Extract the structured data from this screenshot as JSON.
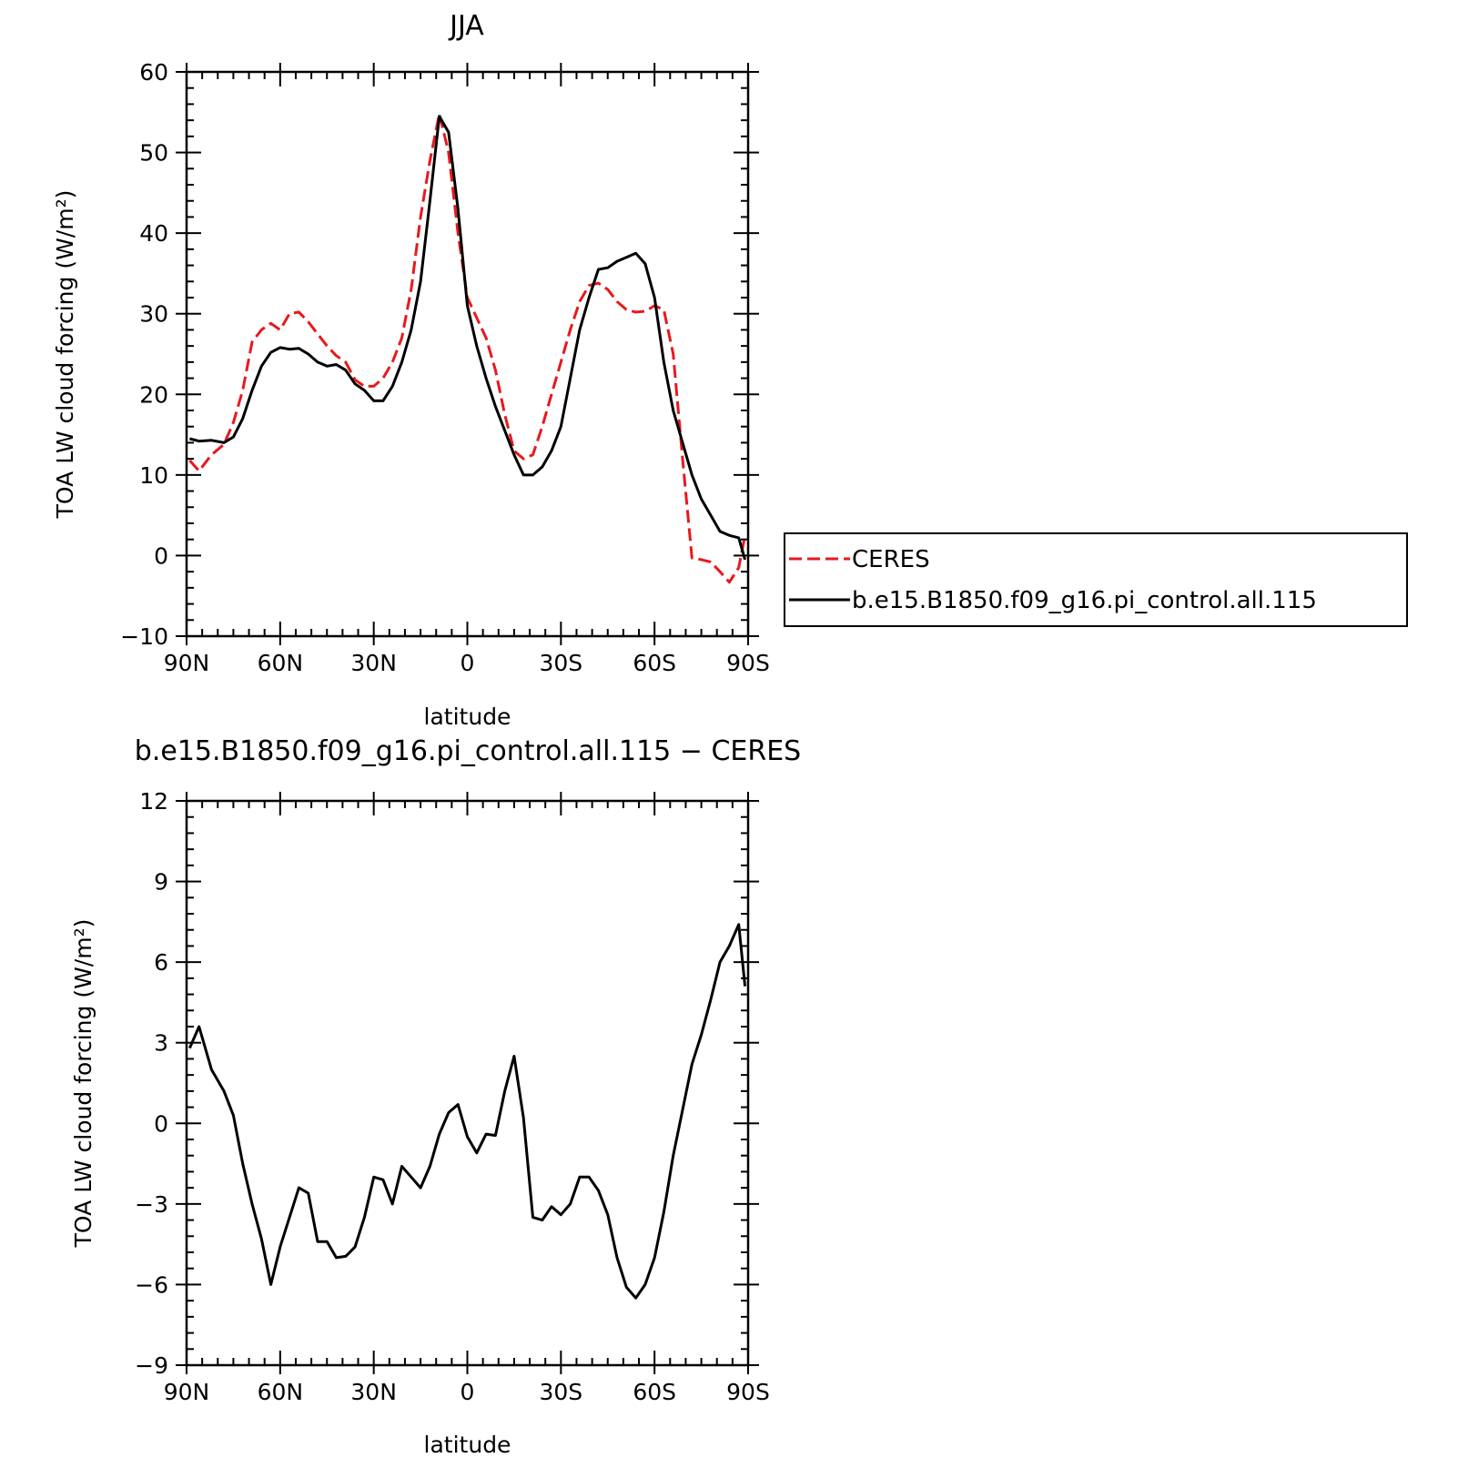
{
  "chart_data": [
    {
      "type": "line",
      "title": "JJA",
      "xlabel": "latitude",
      "ylabel": "TOA LW cloud forcing (W/m²)",
      "xlim": [
        90,
        -90
      ],
      "ylim": [
        -10,
        60
      ],
      "x_ticks": [
        90,
        60,
        30,
        0,
        -30,
        -60,
        -90
      ],
      "x_tick_labels": [
        "90N",
        "60N",
        "30N",
        "0",
        "30S",
        "60S",
        "90S"
      ],
      "y_ticks": [
        -10,
        0,
        10,
        20,
        30,
        40,
        50,
        60
      ],
      "y_tick_labels": [
        "−10",
        "0",
        "10",
        "20",
        "30",
        "40",
        "50",
        "60"
      ],
      "legend": "right",
      "series": [
        {
          "name": "CERES",
          "color": "#e8191c",
          "dash": "dashed",
          "x": [
            89,
            86,
            82,
            78,
            75,
            72,
            69,
            66,
            63,
            60,
            57,
            54,
            51,
            48,
            45,
            42,
            39,
            36,
            33,
            30,
            27,
            24,
            21,
            18,
            15,
            12,
            9,
            6,
            3,
            0,
            -3,
            -6,
            -9,
            -12,
            -15,
            -18,
            -21,
            -24,
            -27,
            -30,
            -33,
            -36,
            -39,
            -42,
            -45,
            -48,
            -51,
            -54,
            -57,
            -60,
            -63,
            -66,
            -69,
            -72,
            -75,
            -78,
            -81,
            -84,
            -87,
            -89
          ],
          "y": [
            11.8,
            10.5,
            12.5,
            13.8,
            16.5,
            20.5,
            26.5,
            28.0,
            28.8,
            28.0,
            30.0,
            30.2,
            29.0,
            27.5,
            26.0,
            24.8,
            24.0,
            21.8,
            21.0,
            21.0,
            22.0,
            24.0,
            27.0,
            33.0,
            42.0,
            49.0,
            54.8,
            50.0,
            40.0,
            32.0,
            29.5,
            27.0,
            23.0,
            17.5,
            13.0,
            12.0,
            12.5,
            16.0,
            20.0,
            24.0,
            28.0,
            31.5,
            33.5,
            33.8,
            33.0,
            31.5,
            30.5,
            30.2,
            30.3,
            31.0,
            30.5,
            25.0,
            12.0,
            -0.3,
            -0.5,
            -0.8,
            -2.0,
            -3.3,
            -1.5,
            2.5
          ]
        },
        {
          "name": "b.e15.B1850.f09_g16.pi_control.all.115",
          "color": "#000000",
          "dash": "solid",
          "x": [
            89,
            86,
            82,
            78,
            75,
            72,
            69,
            66,
            63,
            60,
            57,
            54,
            51,
            48,
            45,
            42,
            39,
            36,
            33,
            30,
            27,
            24,
            21,
            18,
            15,
            12,
            9,
            6,
            3,
            0,
            -3,
            -6,
            -9,
            -12,
            -15,
            -18,
            -21,
            -24,
            -27,
            -30,
            -33,
            -36,
            -39,
            -42,
            -45,
            -48,
            -51,
            -54,
            -57,
            -60,
            -63,
            -66,
            -69,
            -72,
            -75,
            -78,
            -81,
            -84,
            -87,
            -89
          ],
          "y": [
            14.5,
            14.2,
            14.3,
            14.0,
            14.7,
            17.0,
            20.5,
            23.5,
            25.2,
            25.8,
            25.6,
            25.7,
            25.0,
            24.0,
            23.5,
            23.7,
            23.0,
            21.3,
            20.5,
            19.2,
            19.2,
            21.0,
            24.0,
            28.0,
            34.0,
            44.0,
            54.5,
            52.5,
            43.0,
            31.0,
            26.0,
            22.0,
            18.5,
            15.5,
            12.5,
            10.0,
            10.0,
            11.0,
            13.0,
            16.0,
            22.0,
            28.0,
            32.0,
            35.5,
            35.7,
            36.5,
            37.0,
            37.5,
            36.2,
            32.0,
            24.0,
            18.0,
            14.0,
            10.0,
            7.0,
            5.0,
            3.0,
            2.5,
            2.2,
            -0.5
          ]
        }
      ]
    },
    {
      "type": "line",
      "title": "b.e15.B1850.f09_g16.pi_control.all.115 − CERES",
      "xlabel": "latitude",
      "ylabel": "TOA LW cloud forcing (W/m²)",
      "xlim": [
        90,
        -90
      ],
      "ylim": [
        -9,
        12
      ],
      "x_ticks": [
        90,
        60,
        30,
        0,
        -30,
        -60,
        -90
      ],
      "x_tick_labels": [
        "90N",
        "60N",
        "30N",
        "0",
        "30S",
        "60S",
        "90S"
      ],
      "y_ticks": [
        -9,
        -6,
        -3,
        0,
        3,
        6,
        9,
        12
      ],
      "y_tick_labels": [
        "−9",
        "−6",
        "−3",
        "0",
        "3",
        "6",
        "9",
        "12"
      ],
      "series": [
        {
          "color": "#000000",
          "dash": "solid",
          "x": [
            89,
            86,
            82,
            78,
            75,
            72,
            69,
            66,
            63,
            60,
            57,
            54,
            51,
            48,
            45,
            42,
            39,
            36,
            33,
            30,
            27,
            24,
            21,
            18,
            15,
            12,
            9,
            6,
            3,
            0,
            -3,
            -6,
            -9,
            -12,
            -15,
            -18,
            -21,
            -24,
            -27,
            -30,
            -33,
            -36,
            -39,
            -42,
            -45,
            -48,
            -51,
            -54,
            -57,
            -60,
            -63,
            -66,
            -69,
            -72,
            -75,
            -78,
            -81,
            -84,
            -87,
            -89
          ],
          "y": [
            2.8,
            3.6,
            2.0,
            1.2,
            0.3,
            -1.5,
            -3.0,
            -4.3,
            -6.0,
            -4.6,
            -3.5,
            -2.4,
            -2.6,
            -4.4,
            -4.4,
            -5.0,
            -4.95,
            -4.6,
            -3.5,
            -2.0,
            -2.1,
            -3.0,
            -1.6,
            -2.0,
            -2.4,
            -1.6,
            -0.4,
            0.4,
            0.7,
            -0.5,
            -1.1,
            -0.4,
            -0.45,
            1.2,
            2.5,
            0.2,
            -3.5,
            -3.6,
            -3.1,
            -3.4,
            -3.0,
            -2.0,
            -2.0,
            -2.5,
            -3.4,
            -5.0,
            -6.1,
            -6.5,
            -6.0,
            -5.0,
            -3.3,
            -1.2,
            0.5,
            2.2,
            3.3,
            4.6,
            6.0,
            6.6,
            7.4,
            5.1
          ]
        }
      ]
    }
  ]
}
